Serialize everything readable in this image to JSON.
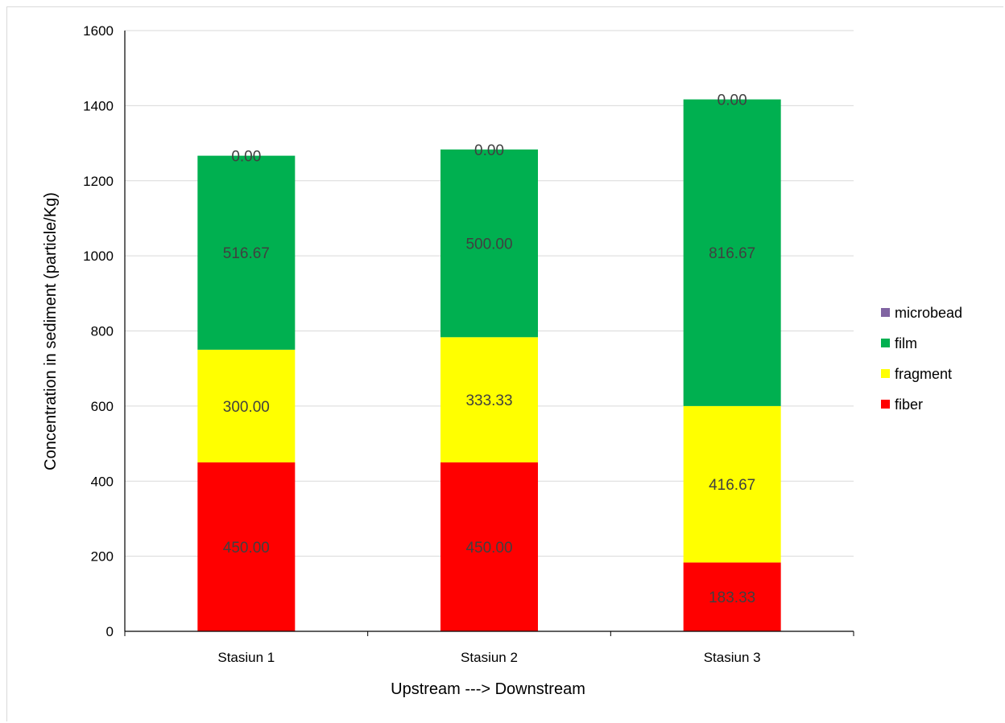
{
  "chart_data": {
    "type": "bar",
    "stacked": true,
    "categories": [
      "Stasiun 1",
      "Stasiun 2",
      "Stasiun 3"
    ],
    "series": [
      {
        "name": "fiber",
        "values": [
          450.0,
          450.0,
          183.33
        ],
        "labels": [
          "450.00",
          "450.00",
          "183.33"
        ],
        "color": "#ff0000"
      },
      {
        "name": "fragment",
        "values": [
          300.0,
          333.33,
          416.67
        ],
        "labels": [
          "300.00",
          "333.33",
          "416.67"
        ],
        "color": "#ffff00"
      },
      {
        "name": "film",
        "values": [
          516.67,
          500.0,
          816.67
        ],
        "labels": [
          "516.67",
          "500.00",
          "816.67"
        ],
        "color": "#00b050"
      },
      {
        "name": "microbead",
        "values": [
          0.0,
          0.0,
          0.0
        ],
        "labels": [
          "0.00",
          "0.00",
          "0.00"
        ],
        "color": "#8064a2"
      }
    ],
    "legend_order": [
      "microbead",
      "film",
      "fragment",
      "fiber"
    ],
    "title": "",
    "xlabel": "Upstream ---> Downstream",
    "ylabel": "Concentration in sediment (particle/Kg)",
    "ylim": [
      0,
      1600
    ],
    "yticks": [
      "0",
      "200",
      "400",
      "600",
      "800",
      "1000",
      "1200",
      "1400",
      "1600"
    ],
    "grid": true,
    "legend_position": "right"
  }
}
